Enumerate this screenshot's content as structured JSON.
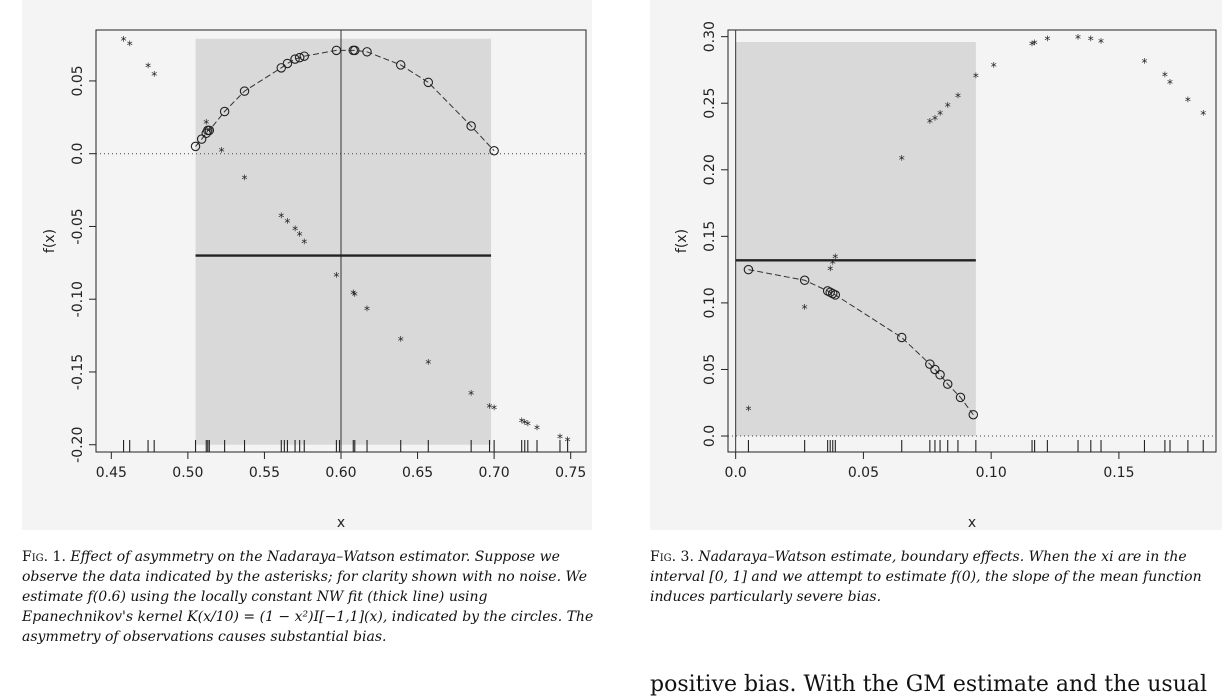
{
  "chart_data": [
    {
      "type": "scatter",
      "id": "fig1",
      "title": "",
      "xlabel": "x",
      "ylabel": "f(x)",
      "xlim": [
        0.44,
        0.76
      ],
      "ylim": [
        -0.205,
        0.085
      ],
      "xticks": [
        0.45,
        0.5,
        0.55,
        0.6,
        0.65,
        0.7,
        0.75
      ],
      "xtick_labels": [
        "0.45",
        "0.50",
        "0.55",
        "0.60",
        "0.65",
        "0.70",
        "0.75"
      ],
      "yticks": [
        0.05,
        0.0,
        -0.05,
        -0.1,
        -0.15,
        -0.2
      ],
      "ytick_labels": [
        "0.05",
        "0.0",
        "-0.05",
        "-0.10",
        "-0.15",
        "-0.20"
      ],
      "shaded_region": {
        "x": [
          0.505,
          0.698
        ],
        "y": [
          -0.2,
          0.079
        ]
      },
      "vertical_line_x": 0.6,
      "nw_fit_level": -0.07,
      "dotted_zero_y": 0.0,
      "asterisks": [
        [
          0.458,
          0.078
        ],
        [
          0.462,
          0.075
        ],
        [
          0.474,
          0.06
        ],
        [
          0.478,
          0.054
        ],
        [
          0.512,
          0.021
        ],
        [
          0.514,
          0.016
        ],
        [
          0.522,
          0.002
        ],
        [
          0.537,
          -0.017
        ],
        [
          0.561,
          -0.043
        ],
        [
          0.565,
          -0.047
        ],
        [
          0.57,
          -0.052
        ],
        [
          0.573,
          -0.056
        ],
        [
          0.576,
          -0.061
        ],
        [
          0.597,
          -0.084
        ],
        [
          0.608,
          -0.096
        ],
        [
          0.609,
          -0.097
        ],
        [
          0.617,
          -0.107
        ],
        [
          0.639,
          -0.128
        ],
        [
          0.657,
          -0.144
        ],
        [
          0.685,
          -0.165
        ],
        [
          0.697,
          -0.174
        ],
        [
          0.7,
          -0.175
        ],
        [
          0.718,
          -0.184
        ],
        [
          0.72,
          -0.185
        ],
        [
          0.722,
          -0.186
        ],
        [
          0.728,
          -0.189
        ],
        [
          0.743,
          -0.195
        ],
        [
          0.748,
          -0.197
        ]
      ],
      "circles": [
        [
          0.505,
          0.005
        ],
        [
          0.509,
          0.01
        ],
        [
          0.512,
          0.014
        ],
        [
          0.513,
          0.016
        ],
        [
          0.514,
          0.016
        ],
        [
          0.524,
          0.029
        ],
        [
          0.537,
          0.043
        ],
        [
          0.561,
          0.059
        ],
        [
          0.565,
          0.062
        ],
        [
          0.57,
          0.065
        ],
        [
          0.573,
          0.066
        ],
        [
          0.576,
          0.067
        ],
        [
          0.597,
          0.071
        ],
        [
          0.608,
          0.071
        ],
        [
          0.609,
          0.071
        ],
        [
          0.617,
          0.07
        ],
        [
          0.639,
          0.061
        ],
        [
          0.657,
          0.049
        ],
        [
          0.685,
          0.019
        ],
        [
          0.7,
          0.002
        ]
      ],
      "rug": [
        0.458,
        0.462,
        0.474,
        0.478,
        0.505,
        0.512,
        0.513,
        0.514,
        0.524,
        0.537,
        0.561,
        0.563,
        0.565,
        0.57,
        0.573,
        0.576,
        0.597,
        0.599,
        0.608,
        0.609,
        0.617,
        0.639,
        0.657,
        0.685,
        0.697,
        0.7,
        0.718,
        0.72,
        0.722,
        0.728,
        0.743,
        0.748
      ]
    },
    {
      "type": "scatter",
      "id": "fig3",
      "title": "",
      "xlabel": "x",
      "ylabel": "f(x)",
      "xlim": [
        -0.003,
        0.188
      ],
      "ylim": [
        -0.012,
        0.305
      ],
      "xticks": [
        0.0,
        0.05,
        0.1,
        0.15
      ],
      "xtick_labels": [
        "0.0",
        "0.05",
        "0.10",
        "0.15"
      ],
      "yticks": [
        0.0,
        0.05,
        0.1,
        0.15,
        0.2,
        0.25,
        0.3
      ],
      "ytick_labels": [
        "0.0",
        "0.05",
        "0.10",
        "0.15",
        "0.20",
        "0.25",
        "0.30"
      ],
      "shaded_region": {
        "x": [
          0.0,
          0.094
        ],
        "y": [
          0.0,
          0.296
        ]
      },
      "vertical_line_x": 0.0,
      "nw_fit_level": 0.132,
      "dotted_zero_y": 0.0,
      "asterisks": [
        [
          0.005,
          0.02
        ],
        [
          0.027,
          0.096
        ],
        [
          0.037,
          0.125
        ],
        [
          0.038,
          0.13
        ],
        [
          0.039,
          0.134
        ],
        [
          0.065,
          0.208
        ],
        [
          0.076,
          0.236
        ],
        [
          0.078,
          0.238
        ],
        [
          0.08,
          0.242
        ],
        [
          0.083,
          0.248
        ],
        [
          0.087,
          0.255
        ],
        [
          0.094,
          0.27
        ],
        [
          0.101,
          0.278
        ],
        [
          0.116,
          0.294
        ],
        [
          0.117,
          0.295
        ],
        [
          0.122,
          0.298
        ],
        [
          0.134,
          0.299
        ],
        [
          0.139,
          0.298
        ],
        [
          0.143,
          0.296
        ],
        [
          0.16,
          0.281
        ],
        [
          0.168,
          0.271
        ],
        [
          0.17,
          0.265
        ],
        [
          0.177,
          0.252
        ],
        [
          0.183,
          0.242
        ]
      ],
      "circles": [
        [
          0.005,
          0.125
        ],
        [
          0.027,
          0.117
        ],
        [
          0.036,
          0.109
        ],
        [
          0.037,
          0.108
        ],
        [
          0.038,
          0.107
        ],
        [
          0.039,
          0.106
        ],
        [
          0.065,
          0.074
        ],
        [
          0.076,
          0.054
        ],
        [
          0.078,
          0.05
        ],
        [
          0.08,
          0.046
        ],
        [
          0.083,
          0.039
        ],
        [
          0.088,
          0.029
        ],
        [
          0.093,
          0.016
        ]
      ],
      "rug": [
        0.005,
        0.027,
        0.036,
        0.037,
        0.038,
        0.039,
        0.065,
        0.076,
        0.078,
        0.08,
        0.083,
        0.087,
        0.094,
        0.116,
        0.117,
        0.122,
        0.134,
        0.139,
        0.143,
        0.16,
        0.168,
        0.17,
        0.177,
        0.183
      ]
    }
  ],
  "captions": {
    "fig1_label": "Fig. 1.",
    "fig1_text": "Effect of asymmetry on the Nadaraya–Watson estimator. Suppose we observe the data indicated by the asterisks; for clarity shown with no noise. We estimate f(0.6) using the locally constant NW fit (thick line) using Epanechnikov's kernel K(x/10) = (1 − x²)I[−1,1](x), indicated by the circles. The asymmetry of observations causes substantial bias.",
    "fig3_label": "Fig. 3.",
    "fig3_text": "Nadaraya–Watson estimate, boundary effects. When the xi are in the interval [0, 1] and we attempt to estimate f(0), the slope of the mean function induces particularly severe bias."
  },
  "body_fragment": "positive bias. With the GM estimate and the usual"
}
